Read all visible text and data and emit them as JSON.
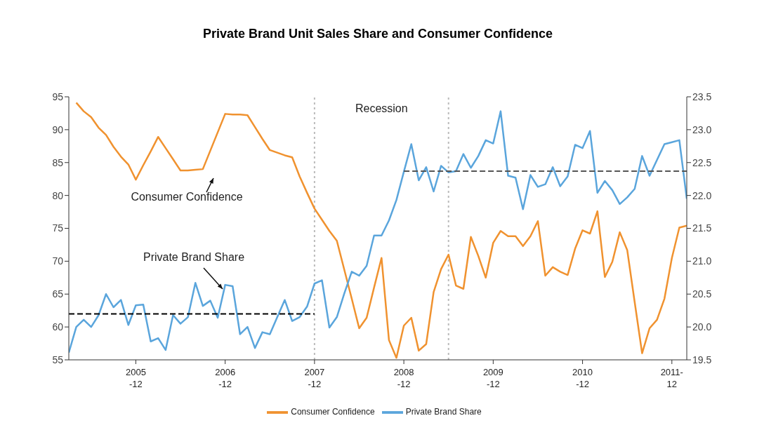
{
  "chart_data": {
    "type": "line",
    "title": "Private Brand Unit Sales Share and Consumer Confidence",
    "x": [
      "2005-03",
      "2005-04",
      "2005-05",
      "2005-06",
      "2005-07",
      "2005-08",
      "2005-09",
      "2005-10",
      "2005-11",
      "2005-12",
      "2006-01",
      "2006-02",
      "2006-03",
      "2006-04",
      "2006-05",
      "2006-06",
      "2006-07",
      "2006-08",
      "2006-09",
      "2006-10",
      "2006-11",
      "2006-12",
      "2007-01",
      "2007-02",
      "2007-03",
      "2007-04",
      "2007-05",
      "2007-06",
      "2007-07",
      "2007-08",
      "2007-09",
      "2007-10",
      "2007-11",
      "2007-12",
      "2008-01",
      "2008-02",
      "2008-03",
      "2008-04",
      "2008-05",
      "2008-06",
      "2008-07",
      "2008-08",
      "2008-09",
      "2008-10",
      "2008-11",
      "2008-12",
      "2009-01",
      "2009-02",
      "2009-03",
      "2009-04",
      "2009-05",
      "2009-06",
      "2009-07",
      "2009-08",
      "2009-09",
      "2009-10",
      "2009-11",
      "2009-12",
      "2010-01",
      "2010-02",
      "2010-03",
      "2010-04",
      "2010-05",
      "2010-06",
      "2010-07",
      "2010-08",
      "2010-09",
      "2010-10",
      "2010-11",
      "2010-12",
      "2011-01",
      "2011-02",
      "2011-03",
      "2011-04",
      "2011-05",
      "2011-06",
      "2011-07",
      "2011-08",
      "2011-09",
      "2011-10",
      "2011-11",
      "2011-12",
      "2012-01",
      "2012-02"
    ],
    "series": [
      {
        "name": "Consumer Confidence",
        "color": "#f0922f",
        "values": [
          null,
          94.1,
          92.8,
          91.9,
          90.3,
          89.2,
          87.4,
          85.9,
          84.7,
          82.4,
          84.6,
          86.7,
          88.9,
          87.2,
          85.5,
          83.8,
          83.8,
          83.9,
          84.0,
          86.8,
          89.6,
          92.4,
          92.3,
          92.3,
          92.2,
          90.4,
          88.6,
          86.9,
          86.5,
          86.1,
          85.8,
          82.9,
          80.4,
          78.0,
          76.3,
          74.6,
          73.1,
          68.7,
          64.3,
          59.8,
          61.4,
          66.0,
          70.5,
          58.0,
          55.3,
          60.2,
          61.4,
          56.4,
          57.4,
          65.3,
          68.8,
          71.0,
          66.3,
          65.8,
          73.7,
          70.8,
          67.5,
          72.8,
          74.6,
          73.8,
          73.8,
          72.3,
          73.8,
          76.1,
          67.8,
          69.1,
          68.4,
          67.9,
          71.9,
          74.7,
          74.2,
          77.6,
          67.6,
          69.9,
          74.4,
          71.7,
          63.8,
          56.0,
          59.8,
          61.1,
          64.3,
          70.5,
          75.1,
          75.4
        ]
      },
      {
        "name": "Private Brand Share",
        "color": "#5aa5dc",
        "axis": "y2",
        "values": [
          19.61,
          20.0,
          20.11,
          20.0,
          20.18,
          20.5,
          20.3,
          20.41,
          20.03,
          20.33,
          20.34,
          19.78,
          19.83,
          19.65,
          20.18,
          20.05,
          20.15,
          20.67,
          20.32,
          20.4,
          20.14,
          20.64,
          20.62,
          19.89,
          20.0,
          19.68,
          19.92,
          19.89,
          20.15,
          20.41,
          20.09,
          20.15,
          20.31,
          20.66,
          20.71,
          19.99,
          20.15,
          20.51,
          20.84,
          20.78,
          20.93,
          21.39,
          21.39,
          21.62,
          21.93,
          22.36,
          22.78,
          22.23,
          22.43,
          22.06,
          22.45,
          22.35,
          22.37,
          22.63,
          22.42,
          22.6,
          22.84,
          22.79,
          23.28,
          22.3,
          22.27,
          21.79,
          22.31,
          22.13,
          22.17,
          22.43,
          22.14,
          22.29,
          22.77,
          22.72,
          22.98,
          22.04,
          22.22,
          22.08,
          21.87,
          21.97,
          22.1,
          22.6,
          22.3,
          22.54,
          22.78,
          22.81,
          22.84,
          21.95
        ]
      },
      {
        "type": "line",
        "axis": "y2",
        "color": "#000000",
        "line_style": "dashed",
        "x": [
          "2005-03",
          "2007-12"
        ],
        "values": [
          20.2,
          20.2
        ]
      },
      {
        "type": "line",
        "axis": "y2",
        "color": "#555555",
        "line_style": "dashed",
        "x": [
          "2008-12",
          "2012-02"
        ],
        "values": [
          22.37,
          22.37
        ]
      }
    ],
    "xlim": [
      "2005-03",
      "2012-02"
    ],
    "xticks": [
      {
        "value": "2005-12",
        "label": "2005\n-12"
      },
      {
        "value": "2006-12",
        "label": "2006\n-12"
      },
      {
        "value": "2007-12",
        "label": "2007\n-12"
      },
      {
        "value": "2008-12",
        "label": "2008\n-12"
      },
      {
        "value": "2009-12",
        "label": "2009\n-12"
      },
      {
        "value": "2010-12",
        "label": "2010\n-12"
      },
      {
        "value": "2011-12",
        "label": "2011-\n12"
      }
    ],
    "ylim": [
      55,
      95
    ],
    "yticks": [
      55,
      60,
      65,
      70,
      75,
      80,
      85,
      90,
      95
    ],
    "y2lim": [
      19.5,
      23.5
    ],
    "y2ticks": [
      19.5,
      {
        "value": 20,
        "label": "20.0"
      },
      20.5,
      {
        "value": 21,
        "label": "21.0"
      },
      21.5,
      {
        "value": 22,
        "label": "22.0"
      },
      22.5,
      {
        "value": 23,
        "label": "23.0"
      },
      23.5
    ],
    "ref_lines": [
      {
        "axis": "x",
        "value": "2007-12",
        "label": null,
        "color": "#bbbbbb",
        "line_style": "dotted"
      },
      {
        "axis": "x",
        "value": "2009-06",
        "label": null,
        "color": "#bbbbbb",
        "line_style": "dotted"
      }
    ],
    "annotations": [
      "Recession",
      "Consumer Confidence",
      "Private Brand Share"
    ],
    "legend": "bottom",
    "grid": false,
    "marker": "none",
    "line_style": "solid"
  }
}
